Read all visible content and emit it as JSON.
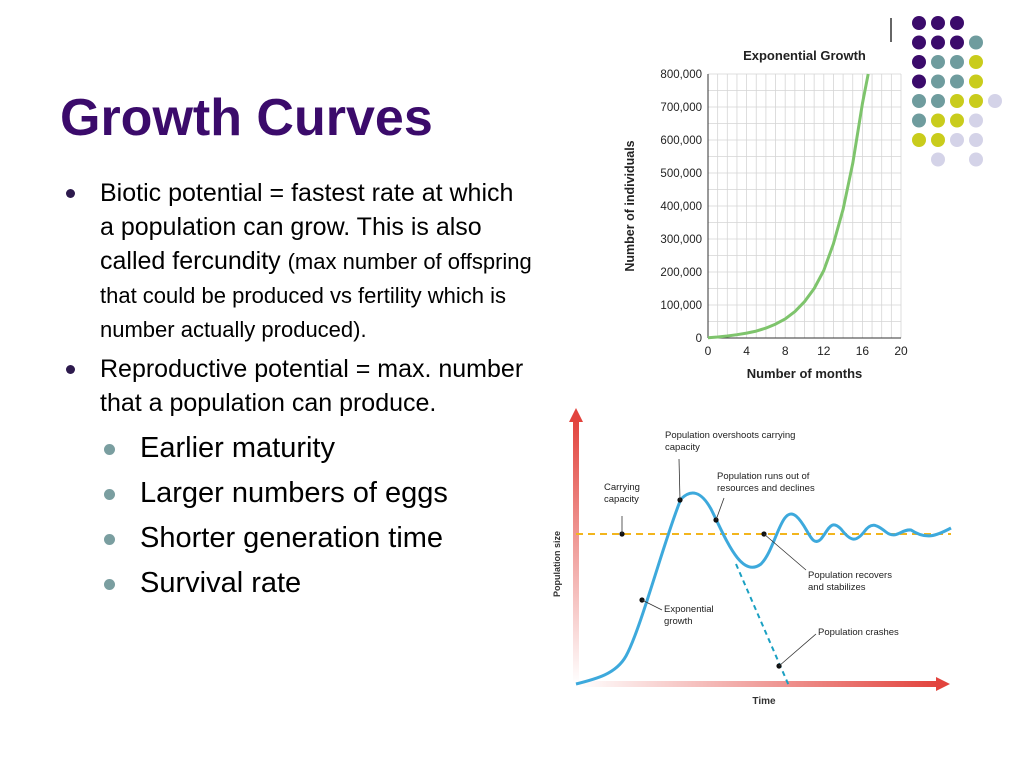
{
  "slide": {
    "title": "Growth Curves",
    "bullets": [
      {
        "text": "Biotic potential = fastest rate at which a population can grow. This is also called fercundity",
        "small": "(max number of offspring that could be produced vs fertility which is number actually produced)."
      },
      {
        "text": "Reproductive potential = max. number that a population can produce.",
        "sub": [
          "Earlier maturity",
          "Larger numbers of eggs",
          "Shorter generation time",
          "Survival rate"
        ]
      }
    ]
  },
  "colors": {
    "title": "#3b0b6b",
    "purple": "#3b0b6b",
    "teal": "#6f9c9e",
    "yellow": "#c9cc1c",
    "lavender": "#d4d3e8",
    "exp_line": "#7ec46c",
    "osc_line": "#3da9dc",
    "carrying_line": "#f2b51d",
    "arrow_red": "#e2433d"
  },
  "chart_data": [
    {
      "type": "line",
      "title": "Exponential Growth",
      "xlabel": "Number of months",
      "ylabel": "Number of individuals",
      "xlim": [
        0,
        20
      ],
      "ylim": [
        0,
        800000
      ],
      "xticks": [
        "0",
        "4",
        "8",
        "12",
        "16",
        "20"
      ],
      "yticks": [
        "0",
        "100,000",
        "200,000",
        "300,000",
        "400,000",
        "500,000",
        "600,000",
        "700,000",
        "800,000"
      ],
      "grid": true,
      "series": [
        {
          "x": [
            0,
            1,
            2,
            3,
            4,
            5,
            6,
            7,
            8,
            9,
            10,
            11,
            12,
            13,
            14,
            15,
            16,
            16.6
          ],
          "values": [
            1000,
            3000,
            6000,
            10000,
            15000,
            21000,
            30000,
            42000,
            58000,
            80000,
            110000,
            150000,
            205000,
            285000,
            390000,
            530000,
            710000,
            800000
          ]
        }
      ]
    },
    {
      "type": "line",
      "xlabel": "Time",
      "ylabel": "Population size",
      "labels": {
        "carrying": "Carrying capacity",
        "overshoot": "Population overshoots carrying capacity",
        "runs_out": "Population runs out of resources and declines",
        "recovers": "Population recovers and stabilizes",
        "exponential": "Exponential growth",
        "crashes": "Population crashes"
      }
    }
  ]
}
